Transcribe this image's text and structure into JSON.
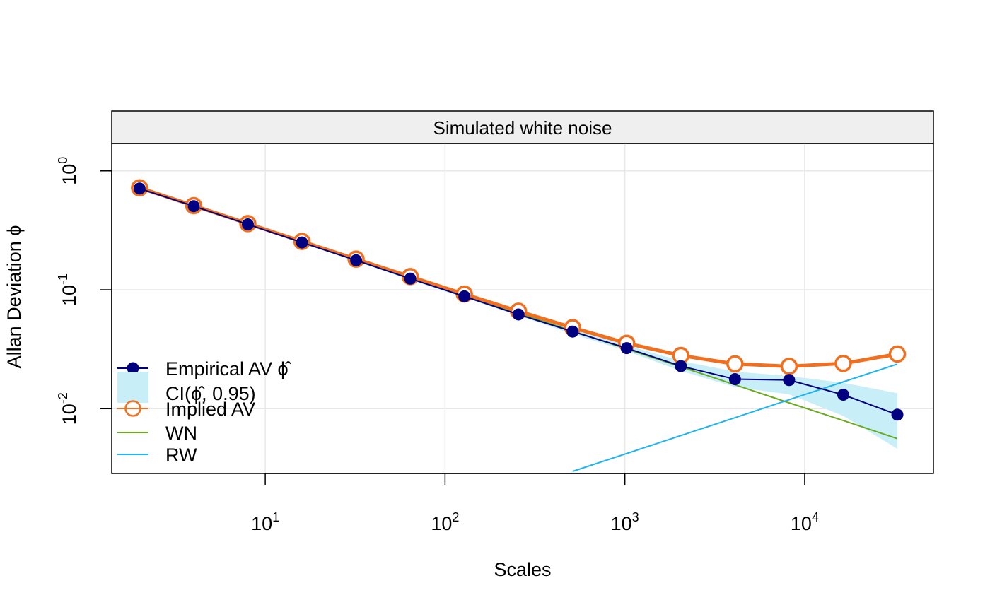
{
  "chart_data": {
    "type": "line",
    "title": "Simulated white noise",
    "xlabel": "Scales",
    "ylabel": "Allan Deviation ϕ",
    "log_x": true,
    "log_y": true,
    "xlim": [
      1.4,
      52000
    ],
    "ylim": [
      0.00285,
      1.7
    ],
    "x_ticks": [
      {
        "value": 10,
        "base": "10",
        "exp": "1"
      },
      {
        "value": 100,
        "base": "10",
        "exp": "2"
      },
      {
        "value": 1000,
        "base": "10",
        "exp": "3"
      },
      {
        "value": 10000,
        "base": "10",
        "exp": "4"
      }
    ],
    "y_ticks": [
      {
        "value": 1,
        "base": "10",
        "exp": "0"
      },
      {
        "value": 0.1,
        "base": "10",
        "exp": "-1"
      },
      {
        "value": 0.01,
        "base": "10",
        "exp": "-2"
      }
    ],
    "grid": true,
    "legend_position": "bottom-left",
    "x": [
      2,
      4,
      8,
      16,
      32,
      64,
      128,
      256,
      512,
      1024,
      2048,
      4096,
      8192,
      16384,
      32768
    ],
    "series": [
      {
        "name": "Empirical AV ϕ̂",
        "key": "empirical",
        "style": "line-points",
        "color": "#000080",
        "values": [
          0.71,
          0.505,
          0.355,
          0.25,
          0.177,
          0.124,
          0.088,
          0.062,
          0.0445,
          0.0323,
          0.0228,
          0.0177,
          0.0174,
          0.0131,
          0.0089
        ]
      },
      {
        "name": "CI(ϕ̂, 0.95)",
        "key": "ci",
        "style": "band",
        "color": "#C8EEF8",
        "lower": [
          0.69,
          0.495,
          0.347,
          0.245,
          0.173,
          0.121,
          0.086,
          0.0605,
          0.0425,
          0.0305,
          0.0208,
          0.0152,
          0.0132,
          0.0087,
          0.0046
        ],
        "upper": [
          0.73,
          0.515,
          0.363,
          0.255,
          0.181,
          0.127,
          0.09,
          0.0635,
          0.0465,
          0.0341,
          0.0252,
          0.0205,
          0.0188,
          0.0165,
          0.0135
        ]
      },
      {
        "name": "Implied AV",
        "key": "implied",
        "style": "thick-line-open-points",
        "color": "#F07020",
        "values": [
          0.72,
          0.51,
          0.36,
          0.255,
          0.181,
          0.129,
          0.092,
          0.066,
          0.048,
          0.0355,
          0.028,
          0.0238,
          0.0227,
          0.024,
          0.0288
        ]
      },
      {
        "name": "WN",
        "key": "wn",
        "style": "line",
        "color": "#6AAA1E",
        "values": [
          0.72,
          0.509,
          0.36,
          0.254,
          0.18,
          0.127,
          0.09,
          0.0636,
          0.045,
          0.0318,
          0.0225,
          0.0159,
          0.0112,
          0.00795,
          0.0056
        ]
      },
      {
        "name": "RW",
        "key": "rw",
        "style": "line",
        "color": "#1EB4F0",
        "x": [
          512,
          1024,
          2048,
          4096,
          8192,
          16384,
          32768
        ],
        "values": [
          0.00297,
          0.0042,
          0.00594,
          0.0084,
          0.0119,
          0.0168,
          0.0237
        ]
      }
    ]
  }
}
